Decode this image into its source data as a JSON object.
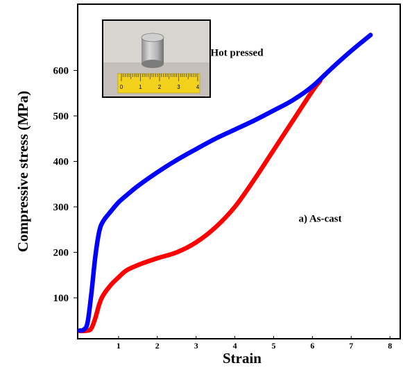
{
  "chart_data": {
    "type": "line",
    "xlabel": "Strain",
    "ylabel": "Compressive stress (MPa)",
    "xlim": [
      0,
      8.4
    ],
    "ylim": [
      20,
      690
    ],
    "x_ticks": [
      "1",
      "2",
      "3",
      "4",
      "5",
      "6",
      "7",
      "8"
    ],
    "y_ticks": [
      "100",
      "200",
      "300",
      "400",
      "500",
      "600"
    ],
    "grid": false,
    "legend": "none",
    "annotations": [
      {
        "text": "b) Hot pressed",
        "x": 3.9,
        "y": 640
      },
      {
        "text": "a) As-cast",
        "x": 6.2,
        "y": 275
      }
    ],
    "series": [
      {
        "color": "#0000ff",
        "x": [
          0.0,
          0.1,
          0.2,
          0.3,
          0.4,
          0.5,
          0.6,
          0.8,
          1.0,
          1.2,
          1.5,
          2.0,
          2.5,
          3.0,
          3.5,
          4.0,
          4.5,
          5.0,
          5.5,
          6.0,
          6.5,
          7.0,
          7.5
        ],
        "values": [
          28,
          30,
          45,
          110,
          190,
          245,
          268,
          290,
          310,
          325,
          346,
          376,
          403,
          427,
          450,
          470,
          490,
          512,
          535,
          565,
          605,
          643,
          678
        ]
      },
      {
        "color": "#ff0000",
        "x": [
          0.0,
          0.2,
          0.3,
          0.4,
          0.5,
          0.6,
          0.8,
          1.0,
          1.2,
          1.5,
          2.0,
          2.5,
          3.0,
          3.5,
          4.0,
          4.5,
          5.0,
          5.5,
          6.0,
          6.2
        ],
        "values": [
          27,
          28,
          33,
          55,
          85,
          105,
          128,
          145,
          160,
          172,
          187,
          200,
          222,
          255,
          300,
          360,
          425,
          490,
          555,
          577
        ]
      }
    ],
    "inset": {
      "ruler_labels": [
        "0",
        "1",
        "2",
        "3",
        "4"
      ]
    }
  }
}
